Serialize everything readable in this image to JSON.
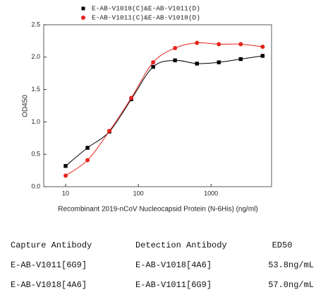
{
  "chart_data": {
    "type": "scatter",
    "x": [
      10,
      20,
      40,
      80,
      160,
      320,
      640,
      1280,
      2560,
      5120
    ],
    "series": [
      {
        "name": "E-AB-V1018(C)&E-AB-V1011(D)",
        "color": "#000000",
        "marker": "square",
        "values": [
          0.32,
          0.6,
          0.85,
          1.35,
          1.85,
          1.95,
          1.9,
          1.92,
          1.97,
          2.02
        ]
      },
      {
        "name": "E-AB-V1011(C)&E-AB-V1018(D)",
        "color": "#e8221c",
        "marker": "circle",
        "values": [
          0.17,
          0.41,
          0.86,
          1.37,
          1.92,
          2.14,
          2.22,
          2.2,
          2.2,
          2.16
        ]
      }
    ],
    "xlabel": "Recombinant 2019-nCoV Nucleocapsid Protein (N-6His) (ng/ml)",
    "ylabel": "OD450",
    "xscale": "log",
    "xlim": [
      5,
      6800
    ],
    "xticks": [
      10,
      100,
      1000
    ],
    "ylim": [
      0,
      2.5
    ],
    "yticks": [
      {
        "value": 0,
        "label": "0.0"
      },
      {
        "value": 0.5,
        "label": "0.5"
      },
      {
        "value": 1,
        "label": "1.0"
      },
      {
        "value": 1.5,
        "label": "1.5"
      },
      {
        "value": 2,
        "label": "2.0"
      },
      {
        "value": 2.5,
        "label": "2.5"
      }
    ],
    "legend": "top",
    "grid": false
  },
  "table": {
    "header": [
      "Capture Antibody",
      "Detection Antibody",
      "ED50"
    ],
    "rows": [
      [
        "E-AB-V1011[6G9]",
        "E-AB-V1018[4A6]",
        "53.8ng/mL"
      ],
      [
        "E-AB-V1018[4A6]",
        "E-AB-V1011[6G9]",
        "57.0ng/mL"
      ]
    ]
  }
}
